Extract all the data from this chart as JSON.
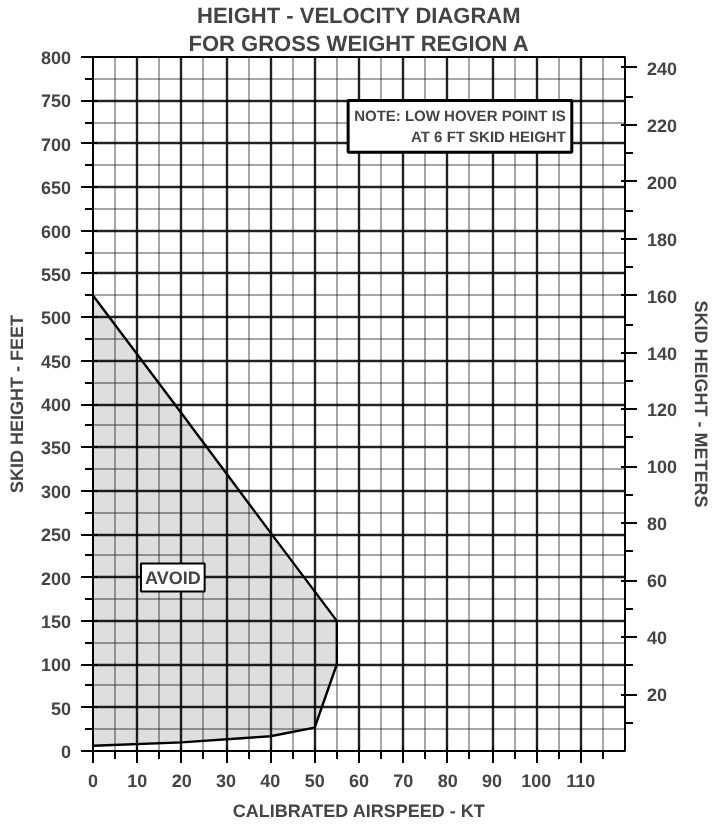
{
  "chart_data": {
    "type": "line",
    "title": "HEIGHT - VELOCITY DIAGRAM",
    "subtitle": "FOR GROSS WEIGHT REGION A",
    "xlabel": "CALIBRATED AIRSPEED - KT",
    "ylabel": "SKID HEIGHT - FEET",
    "y2label": "SKID HEIGHT - METERS",
    "xlim": [
      0,
      120
    ],
    "xticks": [
      0,
      10,
      20,
      30,
      40,
      50,
      60,
      70,
      80,
      90,
      100,
      110
    ],
    "ylim": [
      0,
      800
    ],
    "yticks": [
      0,
      50,
      100,
      150,
      200,
      250,
      300,
      350,
      400,
      450,
      500,
      550,
      600,
      650,
      700,
      750,
      800
    ],
    "y2lim": [
      0,
      243.84
    ],
    "y2ticks": [
      20,
      40,
      60,
      80,
      100,
      120,
      140,
      160,
      180,
      200,
      220,
      240
    ],
    "grid": true,
    "series": [
      {
        "color": "#000000",
        "x": [
          0,
          20,
          40,
          50,
          55
        ],
        "values": [
          525,
          389,
          252,
          184,
          150
        ],
        "lower": [
          6,
          10,
          17,
          27,
          100
        ],
        "upper": [
          525,
          389,
          252,
          184,
          150
        ]
      },
      {
        "type": "line",
        "color": "#000000",
        "x": [
          0,
          20,
          40,
          50,
          55,
          55
        ],
        "values": [
          6,
          10,
          17,
          27,
          100,
          150
        ]
      }
    ],
    "annotations": [
      {
        "text": "AVOID",
        "x": 18,
        "y": 200
      },
      "NOTE: LOW HOVER POINT IS\nAT 6 FT SKID HEIGHT"
    ]
  }
}
